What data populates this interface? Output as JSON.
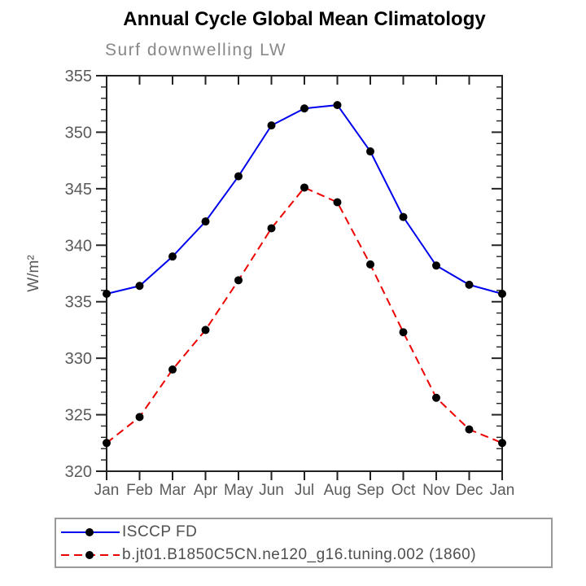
{
  "title": "Annual Cycle Global Mean Climatology",
  "chart_data": {
    "type": "line",
    "title": "Annual Cycle Global Mean Climatology",
    "subtitle": "Surf downwelling LW",
    "xlabel": "",
    "ylabel": "W/m²",
    "categories": [
      "Jan",
      "Feb",
      "Mar",
      "Apr",
      "May",
      "Jun",
      "Jul",
      "Aug",
      "Sep",
      "Oct",
      "Nov",
      "Dec",
      "Jan"
    ],
    "ylim": [
      320,
      355
    ],
    "y_major_step": 5,
    "y_minor_step": 1,
    "grid": false,
    "legend_position": "bottom-left",
    "series": [
      {
        "name": "ISCCP FD",
        "color": "#0000ee",
        "style": "solid",
        "marker": "circle",
        "marker_color": "#000000",
        "values": [
          335.7,
          336.4,
          339.0,
          342.1,
          346.1,
          350.6,
          352.1,
          352.4,
          348.3,
          342.5,
          338.2,
          336.5,
          335.7
        ]
      },
      {
        "name": "b.jt01.B1850C5CN.ne120_g16.tuning.002 (1860)",
        "color": "#ee0000",
        "style": "dashed",
        "marker": "circle",
        "marker_color": "#000000",
        "values": [
          322.5,
          324.8,
          329.0,
          332.5,
          336.9,
          341.5,
          345.1,
          343.8,
          338.3,
          332.3,
          326.5,
          323.7,
          322.5
        ]
      }
    ]
  },
  "colors": {
    "axis": "#222222",
    "tick_label": "#5a5a5a",
    "subtitle": "#888888",
    "legend_border": "#9a9a9a",
    "background": "#ffffff"
  }
}
